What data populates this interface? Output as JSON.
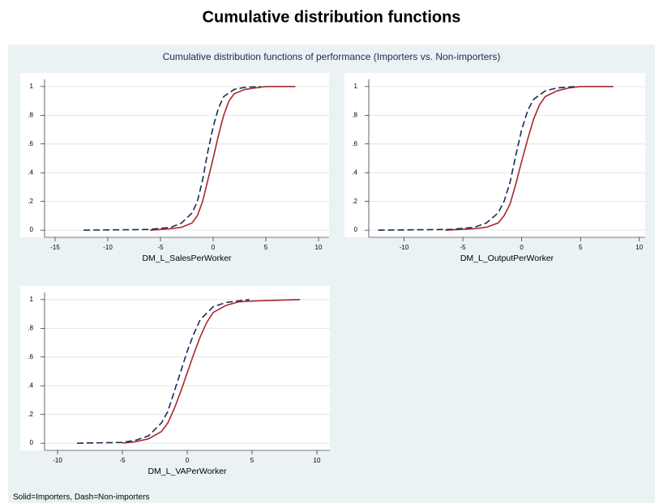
{
  "title": "Cumulative distribution functions",
  "subtitle": "Cumulative distribution functions of performance (Importers vs. Non-importers)",
  "note": "Solid=Importers, Dash=Non-importers",
  "chart_data": [
    {
      "type": "line",
      "xlabel": "DM_L_SalesPerWorker",
      "grid": true,
      "xlim": [
        -16,
        11
      ],
      "ylim": [
        -0.05,
        1.05
      ],
      "xticks": [
        -15,
        -10,
        -5,
        0,
        5,
        10
      ],
      "yticks": [
        0,
        {
          "value": 0.2,
          "label": ".2"
        },
        {
          "value": 0.4,
          "label": ".4"
        },
        {
          "value": 0.6,
          "label": ".6"
        },
        {
          "value": 0.8,
          "label": ".8"
        },
        1
      ],
      "series": [
        {
          "color": "#a8282b",
          "dash": false,
          "x": [
            -6,
            -4,
            -3,
            -2,
            -1.5,
            -1,
            -0.5,
            0,
            0.5,
            1,
            1.5,
            2,
            3,
            4,
            5,
            7.8
          ],
          "values": [
            0,
            0.01,
            0.02,
            0.05,
            0.1,
            0.2,
            0.35,
            0.5,
            0.66,
            0.8,
            0.9,
            0.95,
            0.98,
            0.99,
            1,
            1
          ]
        },
        {
          "color": "#1a2b55",
          "dash": true,
          "x": [
            -12.3,
            -6,
            -4,
            -3,
            -2,
            -1.5,
            -1,
            -0.5,
            0,
            0.5,
            1,
            2,
            3,
            4.5
          ],
          "values": [
            0,
            0.005,
            0.02,
            0.05,
            0.12,
            0.2,
            0.35,
            0.55,
            0.72,
            0.85,
            0.93,
            0.98,
            0.995,
            1
          ]
        }
      ]
    },
    {
      "type": "line",
      "xlabel": "DM_L_OutputPerWorker",
      "grid": true,
      "xlim": [
        -13,
        10.5
      ],
      "ylim": [
        -0.05,
        1.05
      ],
      "xticks": [
        -10,
        -5,
        0,
        5,
        10
      ],
      "yticks": [
        0,
        {
          "value": 0.2,
          "label": ".2"
        },
        {
          "value": 0.4,
          "label": ".4"
        },
        {
          "value": 0.6,
          "label": ".6"
        },
        {
          "value": 0.8,
          "label": ".8"
        },
        1
      ],
      "series": [
        {
          "color": "#a8282b",
          "dash": false,
          "x": [
            -6.5,
            -4,
            -3,
            -2,
            -1.5,
            -1,
            -0.5,
            0,
            0.5,
            1,
            1.5,
            2,
            3,
            4,
            5,
            7.8
          ],
          "values": [
            0,
            0.01,
            0.02,
            0.05,
            0.1,
            0.18,
            0.32,
            0.48,
            0.63,
            0.77,
            0.87,
            0.93,
            0.97,
            0.99,
            1,
            1
          ]
        },
        {
          "color": "#1a2b55",
          "dash": true,
          "x": [
            -12.2,
            -6,
            -4,
            -3,
            -2,
            -1.5,
            -1,
            -0.5,
            0,
            0.5,
            1,
            2,
            3,
            4.5
          ],
          "values": [
            0,
            0.005,
            0.02,
            0.05,
            0.12,
            0.2,
            0.33,
            0.52,
            0.7,
            0.83,
            0.91,
            0.97,
            0.99,
            1
          ]
        }
      ]
    },
    {
      "type": "line",
      "xlabel": "DM_L_VAPerWorker",
      "grid": true,
      "xlim": [
        -11,
        11
      ],
      "ylim": [
        -0.05,
        1.05
      ],
      "xticks": [
        -10,
        -5,
        0,
        5,
        10
      ],
      "yticks": [
        0,
        {
          "value": 0.2,
          "label": ".2"
        },
        {
          "value": 0.4,
          "label": ".4"
        },
        {
          "value": 0.6,
          "label": ".6"
        },
        {
          "value": 0.8,
          "label": ".8"
        },
        1
      ],
      "series": [
        {
          "color": "#a8282b",
          "dash": false,
          "x": [
            -5,
            -4,
            -3,
            -2,
            -1.5,
            -1,
            -0.5,
            0,
            0.5,
            1,
            1.5,
            2,
            3,
            4,
            5,
            8.7
          ],
          "values": [
            0,
            0.01,
            0.03,
            0.08,
            0.14,
            0.24,
            0.36,
            0.49,
            0.62,
            0.74,
            0.84,
            0.91,
            0.96,
            0.985,
            0.99,
            1
          ]
        },
        {
          "color": "#1a2b55",
          "dash": true,
          "x": [
            -8.5,
            -5,
            -4,
            -3,
            -2,
            -1.5,
            -1,
            -0.5,
            0,
            0.5,
            1,
            2,
            3,
            4.8
          ],
          "values": [
            0,
            0.005,
            0.02,
            0.05,
            0.14,
            0.22,
            0.36,
            0.5,
            0.64,
            0.76,
            0.86,
            0.95,
            0.98,
            1
          ]
        }
      ]
    }
  ]
}
